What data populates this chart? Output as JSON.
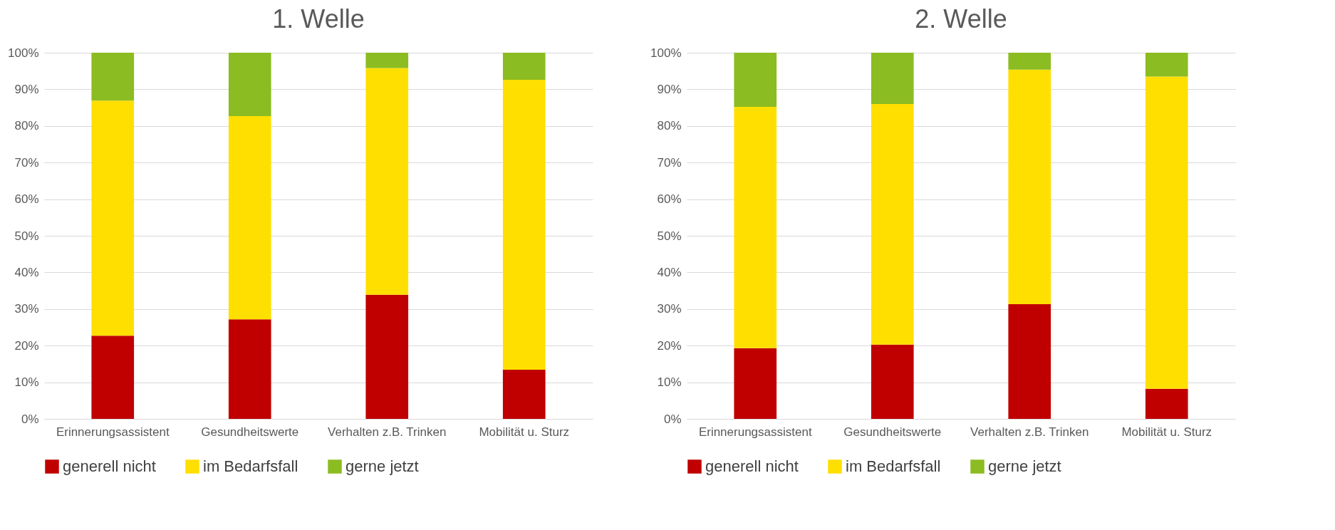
{
  "chart_data": [
    {
      "type": "bar",
      "title": "1. Welle",
      "categories": [
        "Erinnerungsassistent",
        "Gesundheitswerte",
        "Verhalten z.B. Trinken",
        "Mobilität u. Sturz"
      ],
      "stacked": true,
      "ylim": [
        0,
        100
      ],
      "yticks": [
        {
          "value": 0,
          "label": "0%"
        },
        {
          "value": 10,
          "label": "10%"
        },
        {
          "value": 20,
          "label": "20%"
        },
        {
          "value": 30,
          "label": "30%"
        },
        {
          "value": 40,
          "label": "40%"
        },
        {
          "value": 50,
          "label": "50%"
        },
        {
          "value": 60,
          "label": "60%"
        },
        {
          "value": 70,
          "label": "70%"
        },
        {
          "value": 80,
          "label": "80%"
        },
        {
          "value": 90,
          "label": "90%"
        },
        {
          "value": 100,
          "label": "100%"
        }
      ],
      "grid": "y",
      "legend": "bottom",
      "series": [
        {
          "name": "generell nicht",
          "color": "#c00000",
          "values": [
            22.7,
            27.2,
            33.9,
            13.4
          ]
        },
        {
          "name": "im Bedarfsfall",
          "color": "#ffdf00",
          "values": [
            64.2,
            55.5,
            61.9,
            79.2
          ]
        },
        {
          "name": "gerne jetzt",
          "color": "#8bbc21",
          "values": [
            13.1,
            17.3,
            4.2,
            7.4
          ]
        }
      ]
    },
    {
      "type": "bar",
      "title": "2. Welle",
      "categories": [
        "Erinnerungsassistent",
        "Gesundheitswerte",
        "Verhalten z.B. Trinken",
        "Mobilität u. Sturz"
      ],
      "stacked": true,
      "ylim": [
        0,
        100
      ],
      "yticks": [
        {
          "value": 0,
          "label": "0%"
        },
        {
          "value": 10,
          "label": "10%"
        },
        {
          "value": 20,
          "label": "20%"
        },
        {
          "value": 30,
          "label": "30%"
        },
        {
          "value": 40,
          "label": "40%"
        },
        {
          "value": 50,
          "label": "50%"
        },
        {
          "value": 60,
          "label": "60%"
        },
        {
          "value": 70,
          "label": "70%"
        },
        {
          "value": 80,
          "label": "80%"
        },
        {
          "value": 90,
          "label": "90%"
        },
        {
          "value": 100,
          "label": "100%"
        }
      ],
      "grid": "y",
      "legend": "bottom",
      "series": [
        {
          "name": "generell nicht",
          "color": "#c00000",
          "values": [
            19.3,
            20.3,
            31.3,
            8.2
          ]
        },
        {
          "name": "im Bedarfsfall",
          "color": "#ffdf00",
          "values": [
            65.9,
            65.7,
            64.1,
            85.3
          ]
        },
        {
          "name": "gerne jetzt",
          "color": "#8bbc21",
          "values": [
            14.8,
            14.0,
            4.6,
            6.5
          ]
        }
      ]
    }
  ]
}
